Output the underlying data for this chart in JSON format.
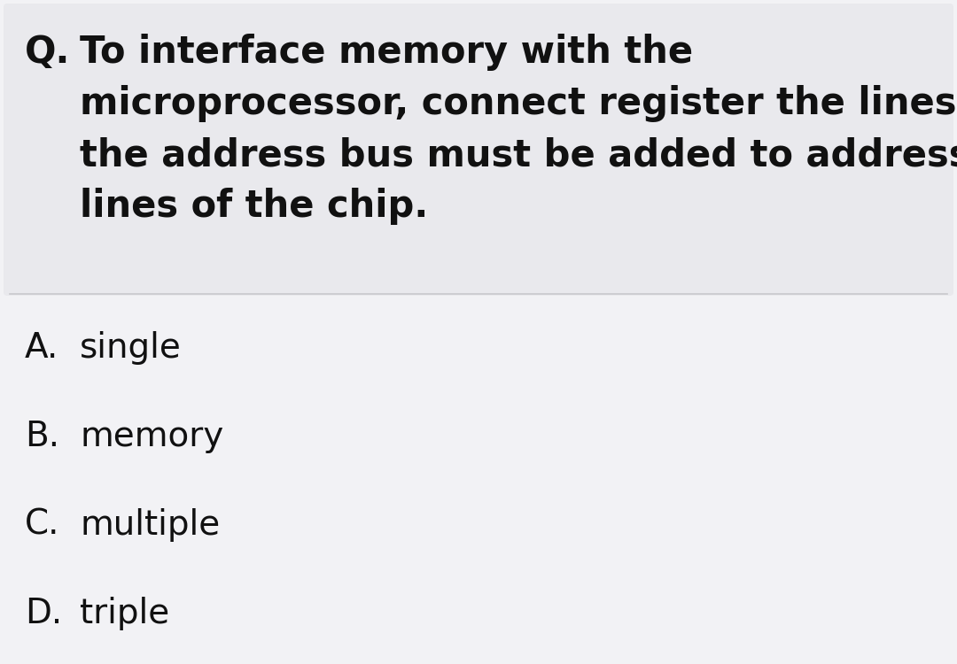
{
  "question_label": "Q.",
  "question_lines": [
    "To interface memory with the",
    "microprocessor, connect register the lines of",
    "the address bus must be added to address",
    "lines of the chip."
  ],
  "options": [
    {
      "label": "A.",
      "text": "single"
    },
    {
      "label": "B.",
      "text": "memory"
    },
    {
      "label": "C.",
      "text": "multiple"
    },
    {
      "label": "D.",
      "text": "triple"
    }
  ],
  "question_bg": "#e9e9ed",
  "answer_bg": "#f2f2f5",
  "text_color": "#111111",
  "divider_color": "#c8c8cc",
  "question_font_size": 30,
  "option_font_size": 28,
  "fig_width": 10.8,
  "fig_height": 7.5,
  "dpi": 100
}
